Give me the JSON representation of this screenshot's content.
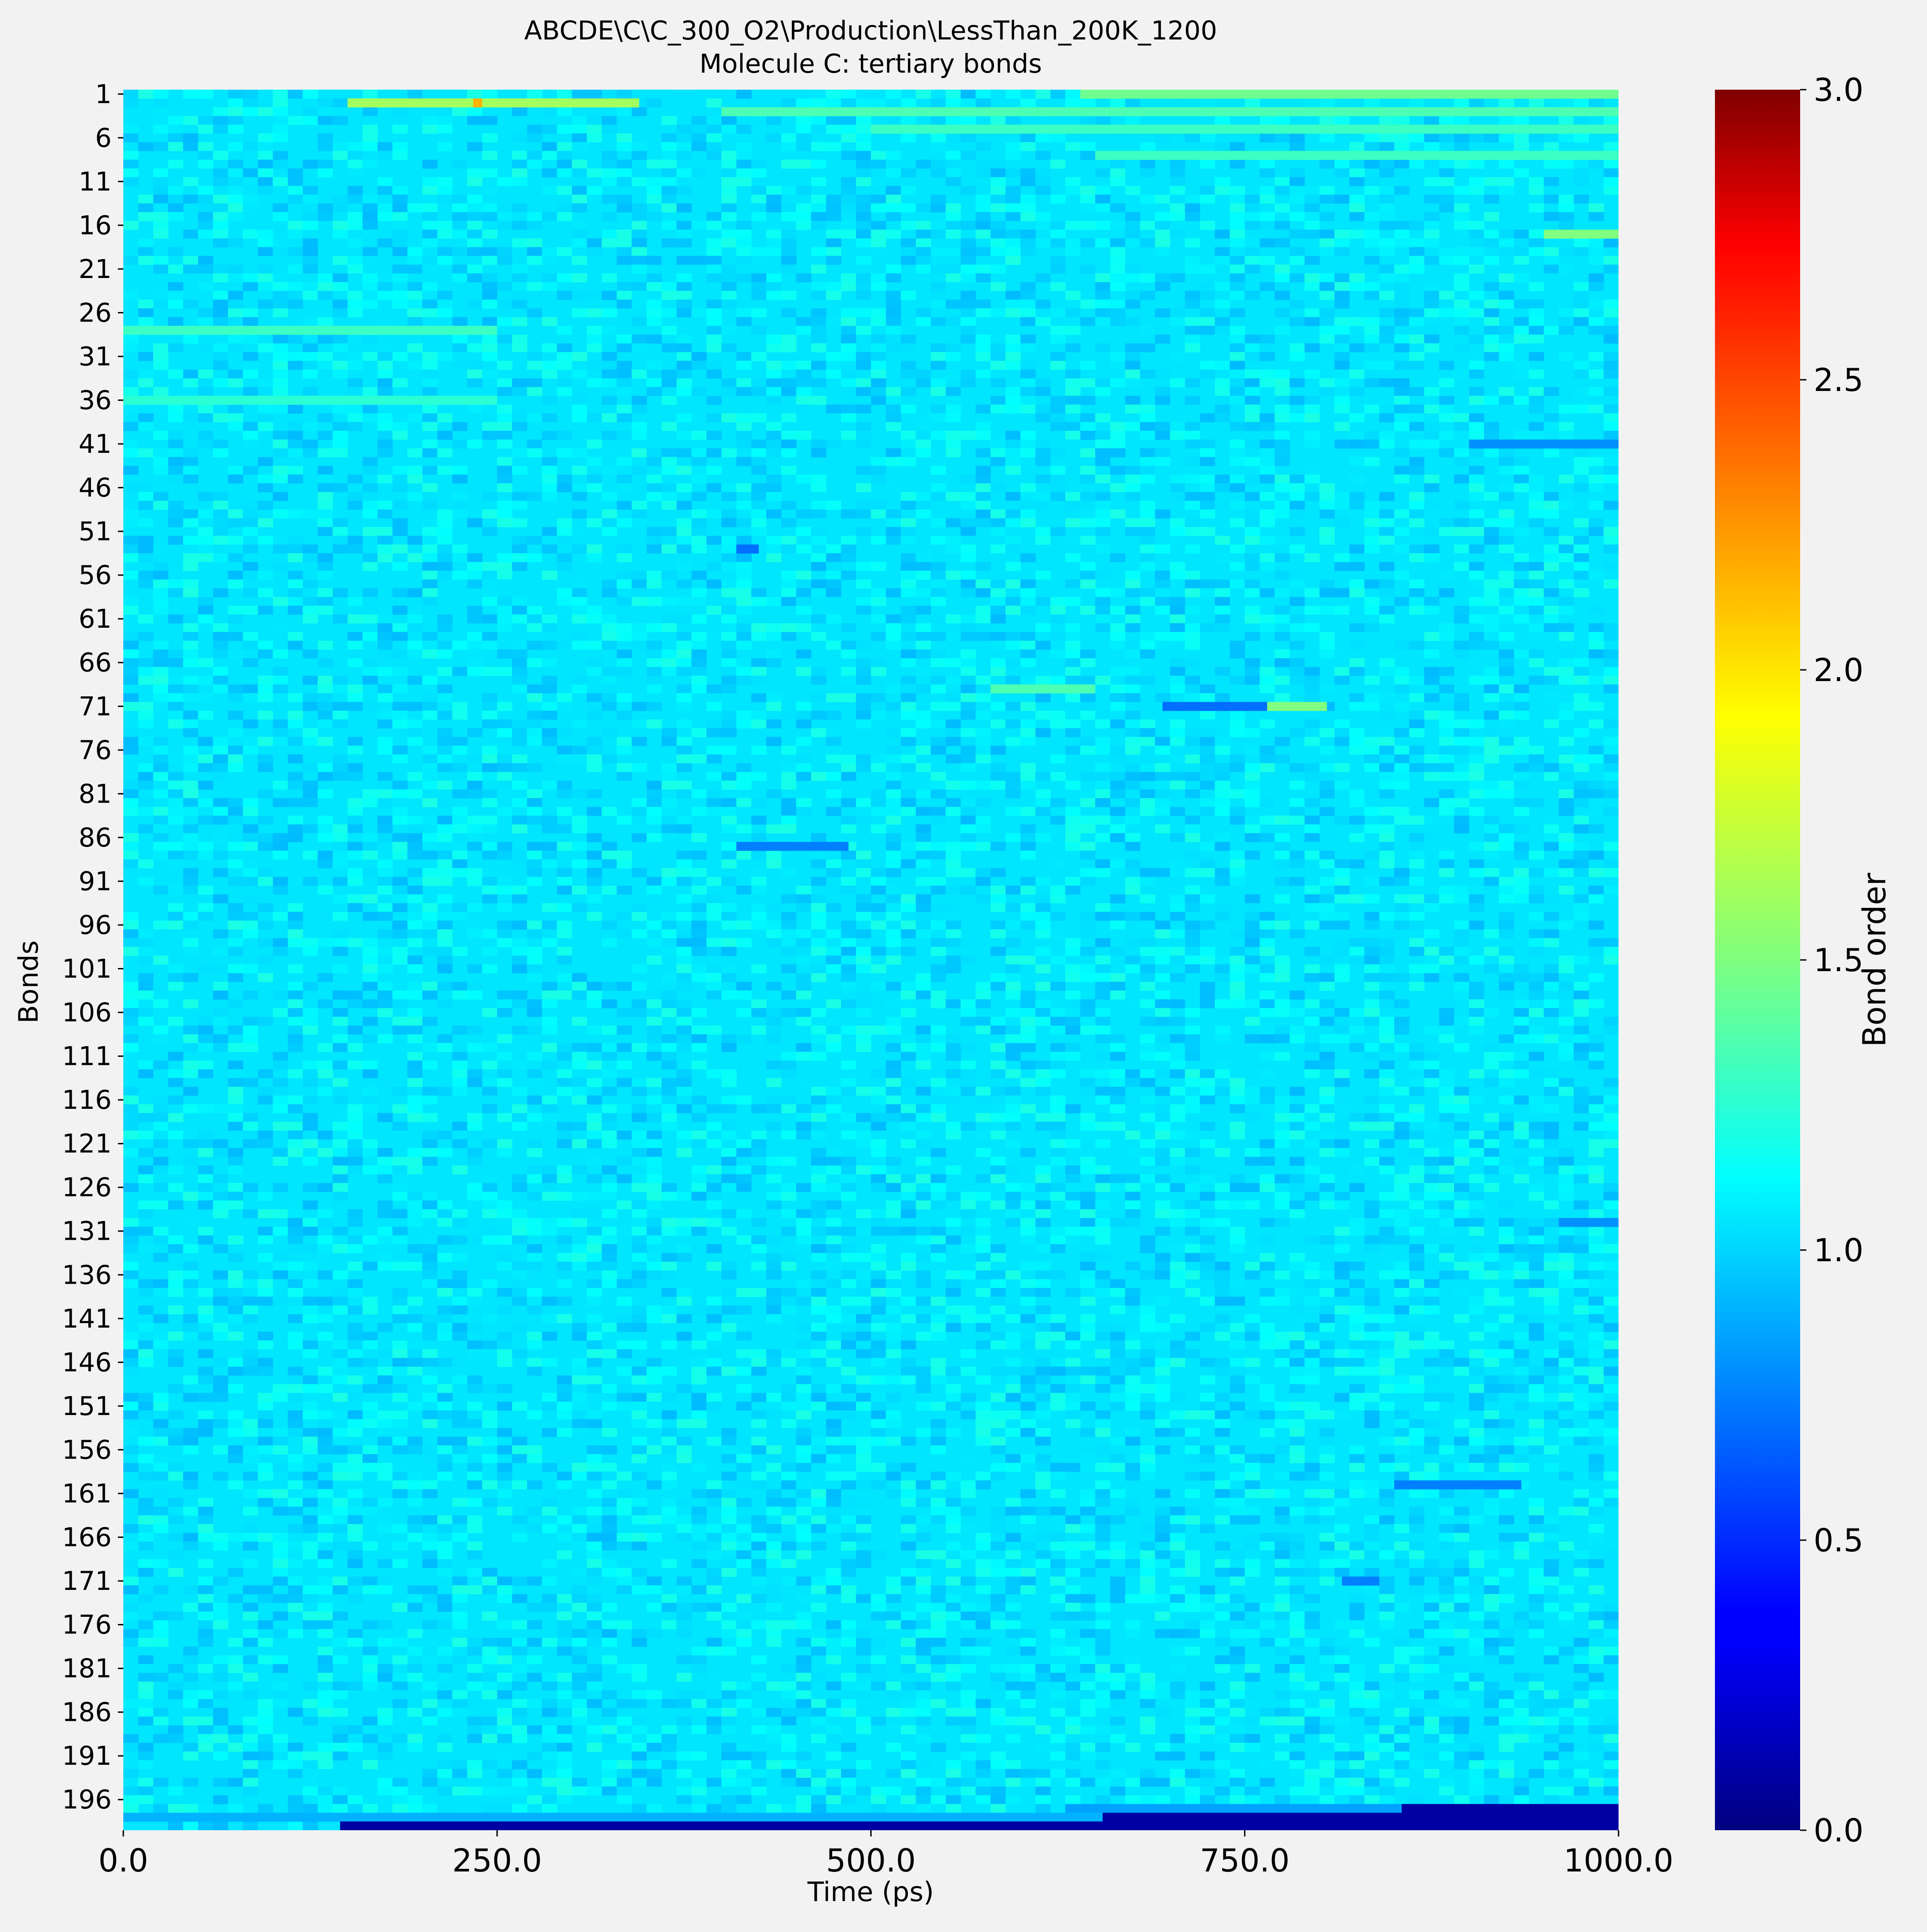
{
  "title": "ABCDE\\C\\C_300_O2\\Production\\LessThan_200K_1200",
  "subtitle": "Molecule C: tertiary bonds",
  "chart_data": {
    "type": "heatmap",
    "xlabel": "Time (ps)",
    "ylabel": "Bonds",
    "xlim": [
      0,
      1000
    ],
    "x_ticks": [
      "0.0",
      "250.0",
      "500.0",
      "750.0",
      "1000.0"
    ],
    "y_ticks": [
      "1",
      "6",
      "11",
      "16",
      "21",
      "26",
      "31",
      "36",
      "41",
      "46",
      "51",
      "56",
      "61",
      "66",
      "71",
      "76",
      "81",
      "86",
      "91",
      "96",
      "101",
      "106",
      "111",
      "116",
      "121",
      "126",
      "131",
      "136",
      "141",
      "146",
      "151",
      "156",
      "161",
      "166",
      "171",
      "176",
      "181",
      "186",
      "191",
      "196"
    ],
    "n_bonds": 199,
    "colormap": "jet",
    "colorbar": {
      "label": "Bond order",
      "range": [
        0,
        3
      ],
      "ticks": [
        "0.0",
        "0.5",
        "1.0",
        "1.5",
        "2.0",
        "2.5",
        "3.0"
      ]
    },
    "base_value": 1.05,
    "features": [
      {
        "bond": 2,
        "t_start": 150,
        "t_end": 345,
        "value": 1.6
      },
      {
        "bond": 2,
        "t_start": 234,
        "t_end": 240,
        "value": 2.1
      },
      {
        "bond": 1,
        "t_start": 640,
        "t_end": 1000,
        "value": 1.45
      },
      {
        "bond": 3,
        "t_start": 400,
        "t_end": 1000,
        "value": 1.35
      },
      {
        "bond": 5,
        "t_start": 500,
        "t_end": 1000,
        "value": 1.3
      },
      {
        "bond": 8,
        "t_start": 650,
        "t_end": 1000,
        "value": 1.3
      },
      {
        "bond": 17,
        "t_start": 950,
        "t_end": 1000,
        "value": 1.5
      },
      {
        "bond": 28,
        "t_start": 0,
        "t_end": 250,
        "value": 1.3
      },
      {
        "bond": 36,
        "t_start": 0,
        "t_end": 250,
        "value": 1.25
      },
      {
        "bond": 41,
        "t_start": 900,
        "t_end": 1000,
        "value": 0.8
      },
      {
        "bond": 53,
        "t_start": 410,
        "t_end": 425,
        "value": 0.7
      },
      {
        "bond": 69,
        "t_start": 580,
        "t_end": 650,
        "value": 1.35
      },
      {
        "bond": 71,
        "t_start": 695,
        "t_end": 765,
        "value": 0.7
      },
      {
        "bond": 71,
        "t_start": 765,
        "t_end": 805,
        "value": 1.5
      },
      {
        "bond": 87,
        "t_start": 410,
        "t_end": 485,
        "value": 0.75
      },
      {
        "bond": 130,
        "t_start": 960,
        "t_end": 1000,
        "value": 0.8
      },
      {
        "bond": 160,
        "t_start": 850,
        "t_end": 935,
        "value": 0.75
      },
      {
        "bond": 171,
        "t_start": 815,
        "t_end": 840,
        "value": 0.75
      },
      {
        "bond": 197,
        "t_start": 630,
        "t_end": 1000,
        "value": 0.85
      },
      {
        "bond": 198,
        "t_start": 0,
        "t_end": 1000,
        "value": 0.9
      },
      {
        "bond": 199,
        "t_start": 145,
        "t_end": 1000,
        "value": 0.1
      },
      {
        "bond": 198,
        "t_start": 655,
        "t_end": 1000,
        "value": 0.1
      },
      {
        "bond": 197,
        "t_start": 855,
        "t_end": 1000,
        "value": 0.1
      }
    ]
  }
}
